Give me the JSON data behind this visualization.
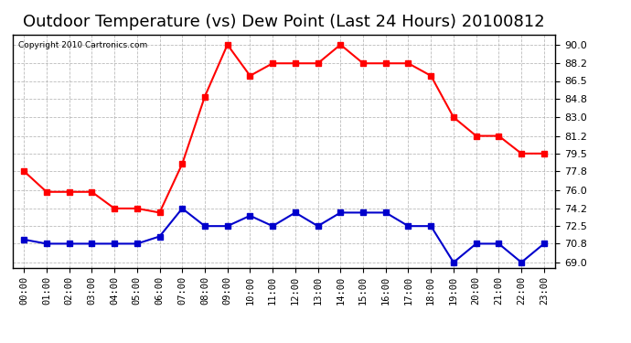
{
  "title": "Outdoor Temperature (vs) Dew Point (Last 24 Hours) 20100812",
  "copyright_text": "Copyright 2010 Cartronics.com",
  "hours": [
    "00:00",
    "01:00",
    "02:00",
    "03:00",
    "04:00",
    "05:00",
    "06:00",
    "07:00",
    "08:00",
    "09:00",
    "10:00",
    "11:00",
    "12:00",
    "13:00",
    "14:00",
    "15:00",
    "16:00",
    "17:00",
    "18:00",
    "19:00",
    "20:00",
    "21:00",
    "22:00",
    "23:00"
  ],
  "temp": [
    77.8,
    75.8,
    75.8,
    75.8,
    74.2,
    74.2,
    73.8,
    78.5,
    85.0,
    90.0,
    87.0,
    88.2,
    88.2,
    88.2,
    90.0,
    88.2,
    88.2,
    88.2,
    87.0,
    83.0,
    81.2,
    81.2,
    79.5,
    79.5
  ],
  "dew": [
    71.2,
    70.8,
    70.8,
    70.8,
    70.8,
    70.8,
    71.5,
    74.2,
    72.5,
    72.5,
    73.5,
    72.5,
    73.8,
    72.5,
    73.8,
    73.8,
    73.8,
    72.5,
    72.5,
    69.0,
    70.8,
    70.8,
    69.0,
    70.8
  ],
  "yticks": [
    69.0,
    70.8,
    72.5,
    74.2,
    76.0,
    77.8,
    79.5,
    81.2,
    83.0,
    84.8,
    86.5,
    88.2,
    90.0
  ],
  "ylim": [
    68.5,
    91.0
  ],
  "temp_color": "#ff0000",
  "dew_color": "#0000cc",
  "background_color": "#ffffff",
  "grid_color": "#aaaaaa",
  "title_fontsize": 13,
  "marker": "s",
  "markersize": 4,
  "linewidth": 1.5
}
